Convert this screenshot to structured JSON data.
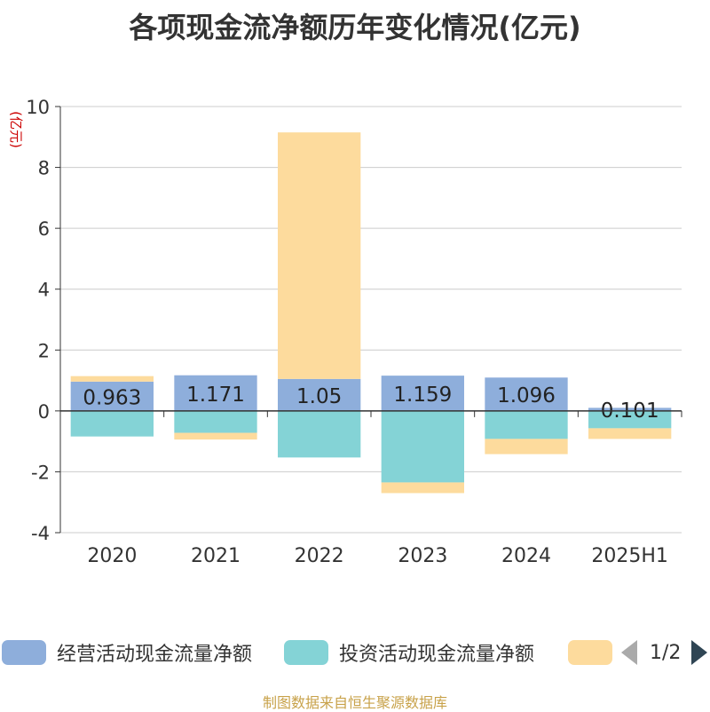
{
  "title": "各项现金流净额历年变化情况(亿元)",
  "source_note": "制图数据来自恒生聚源数据库",
  "legend_pager": "1/2",
  "chart_data": {
    "type": "bar",
    "stacked": true,
    "categories": [
      "2020",
      "2021",
      "2022",
      "2023",
      "2024",
      "2025H1"
    ],
    "ylabel": "(亿元)",
    "ylim": [
      -4,
      10
    ],
    "yticks": [
      -4,
      -2,
      0,
      2,
      4,
      6,
      8,
      10
    ],
    "grid": true,
    "legend_position": "bottom",
    "series": [
      {
        "name": "经营活动现金流量净额",
        "color": "#8eaedb",
        "values": [
          0.963,
          1.171,
          1.05,
          1.159,
          1.096,
          0.101
        ],
        "labels": [
          "0.963",
          "1.171",
          "1.05",
          "1.159",
          "1.096",
          "0.101"
        ]
      },
      {
        "name": "投资活动现金流量净额",
        "color": "#84d3d6",
        "values": [
          -0.84,
          -0.72,
          -1.53,
          -2.35,
          -0.92,
          -0.57
        ]
      },
      {
        "name": "",
        "color": "#fddb9d",
        "values": [
          0.18,
          -0.22,
          8.1,
          -0.35,
          -0.5,
          -0.35
        ]
      }
    ]
  }
}
